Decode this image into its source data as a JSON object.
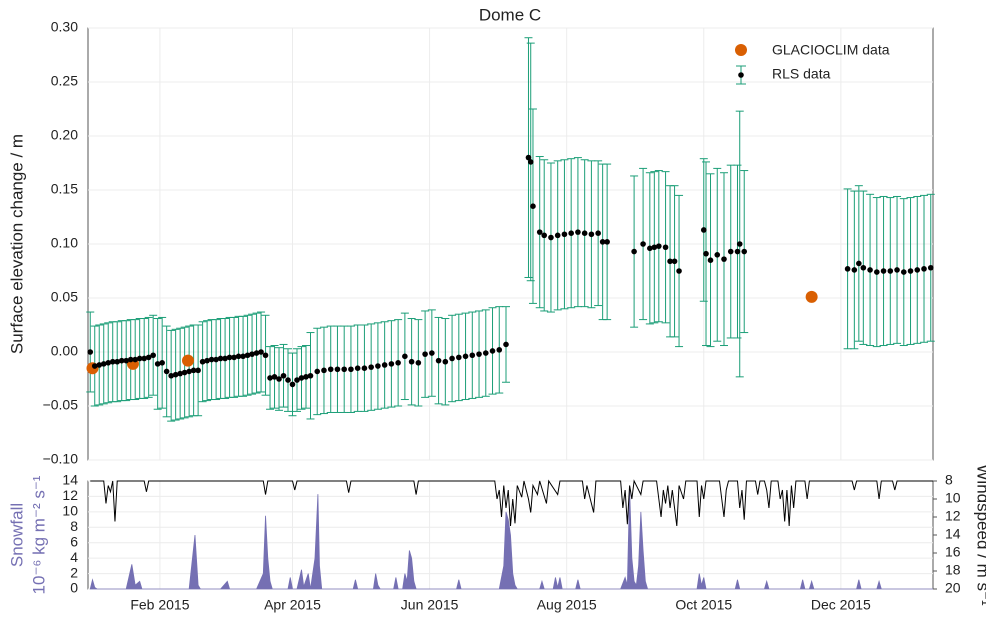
{
  "chart_data": [
    {
      "type": "errorbar",
      "title": "Dome C",
      "y_label": "Surface elevation change / m",
      "ylim": [
        -0.1,
        0.3
      ],
      "yticks": [
        {
          "value": -0.1,
          "label": "−0.10"
        },
        {
          "value": -0.05,
          "label": "−0.05"
        },
        {
          "value": 0,
          "label": "0.00"
        },
        {
          "value": 0.05,
          "label": "0.05"
        },
        {
          "value": 0.1,
          "label": "0.10"
        },
        {
          "value": 0.15,
          "label": "0.15"
        },
        {
          "value": 0.2,
          "label": "0.20"
        },
        {
          "value": 0.25,
          "label": "0.25"
        },
        {
          "value": 0.3,
          "label": "0.30"
        }
      ],
      "grid": true,
      "legend": "upper right",
      "series": [
        {
          "name": "GLACIOCLIM data",
          "color": "#d95f02",
          "x": [
            1,
            19,
            43.5,
            321
          ],
          "values": [
            -0.015,
            -0.011,
            -0.008,
            0.051
          ]
        },
        {
          "name": "RLS data",
          "color": "#000000",
          "error_color": "#1b9e77",
          "x": [
            0,
            2,
            4,
            6,
            8,
            10,
            12,
            14,
            16,
            18,
            20,
            22,
            24,
            26,
            28,
            30,
            32,
            34,
            36,
            38,
            40,
            42,
            44,
            46,
            48,
            50,
            52,
            54,
            56,
            58,
            60,
            62,
            64,
            66,
            68,
            70,
            72,
            74,
            76,
            78,
            80,
            82,
            84,
            86,
            88,
            90,
            92,
            94,
            96,
            98,
            101,
            104,
            107,
            110,
            113,
            116,
            119,
            122,
            125,
            128,
            131,
            134,
            137,
            140,
            143,
            146,
            149,
            152,
            155,
            158,
            161,
            164,
            167,
            170,
            173,
            176,
            179,
            182,
            185,
            195,
            196,
            197,
            200,
            202,
            205,
            208,
            211,
            214,
            217,
            220,
            223,
            226,
            228,
            230,
            242,
            246,
            249,
            251,
            253,
            256,
            258,
            260,
            262,
            273,
            274,
            276,
            279,
            282,
            285,
            288,
            289,
            291,
            337,
            340,
            342,
            344,
            347,
            350,
            353,
            356,
            359,
            362,
            365,
            368,
            371,
            374
          ],
          "values": [
            0.0,
            -0.013,
            -0.012,
            -0.011,
            -0.01,
            -0.009,
            -0.009,
            -0.008,
            -0.008,
            -0.007,
            -0.007,
            -0.006,
            -0.006,
            -0.005,
            -0.003,
            -0.011,
            -0.01,
            -0.018,
            -0.022,
            -0.021,
            -0.02,
            -0.019,
            -0.018,
            -0.017,
            -0.017,
            -0.009,
            -0.008,
            -0.007,
            -0.007,
            -0.006,
            -0.006,
            -0.005,
            -0.005,
            -0.004,
            -0.004,
            -0.003,
            -0.002,
            -0.001,
            0.0,
            -0.003,
            -0.024,
            -0.023,
            -0.025,
            -0.022,
            -0.026,
            -0.03,
            -0.026,
            -0.024,
            -0.023,
            -0.022,
            -0.018,
            -0.017,
            -0.016,
            -0.016,
            -0.016,
            -0.016,
            -0.015,
            -0.015,
            -0.014,
            -0.013,
            -0.012,
            -0.011,
            -0.01,
            -0.004,
            -0.009,
            -0.01,
            -0.002,
            -0.001,
            -0.008,
            -0.009,
            -0.006,
            -0.005,
            -0.004,
            -0.003,
            -0.002,
            -0.001,
            0.001,
            0.002,
            0.007,
            0.18,
            0.176,
            0.135,
            0.111,
            0.108,
            0.106,
            0.108,
            0.109,
            0.11,
            0.111,
            0.11,
            0.109,
            0.11,
            0.102,
            0.102,
            0.093,
            0.1,
            0.096,
            0.097,
            0.098,
            0.097,
            0.084,
            0.084,
            0.075,
            0.113,
            0.091,
            0.085,
            0.09,
            0.086,
            0.093,
            0.093,
            0.1,
            0.093,
            0.077,
            0.076,
            0.082,
            0.078,
            0.076,
            0.074,
            0.075,
            0.075,
            0.076,
            0.074,
            0.075,
            0.076,
            0.077,
            0.078
          ],
          "errors": [
            0.037,
            0.037,
            0.037,
            0.037,
            0.037,
            0.037,
            0.037,
            0.037,
            0.037,
            0.037,
            0.037,
            0.037,
            0.037,
            0.037,
            0.037,
            0.042,
            0.042,
            0.042,
            0.042,
            0.042,
            0.042,
            0.042,
            0.042,
            0.042,
            0.042,
            0.037,
            0.037,
            0.037,
            0.037,
            0.037,
            0.037,
            0.037,
            0.037,
            0.037,
            0.037,
            0.037,
            0.037,
            0.037,
            0.037,
            0.037,
            0.029,
            0.029,
            0.029,
            0.029,
            0.029,
            0.029,
            0.029,
            0.029,
            0.029,
            0.04,
            0.04,
            0.04,
            0.04,
            0.04,
            0.04,
            0.04,
            0.04,
            0.04,
            0.04,
            0.04,
            0.04,
            0.04,
            0.04,
            0.04,
            0.04,
            0.04,
            0.04,
            0.04,
            0.04,
            0.04,
            0.04,
            0.04,
            0.04,
            0.04,
            0.04,
            0.04,
            0.04,
            0.04,
            0.035,
            0.111,
            0.11,
            0.09,
            0.07,
            0.07,
            0.069,
            0.069,
            0.069,
            0.069,
            0.069,
            0.068,
            0.068,
            0.067,
            0.072,
            0.072,
            0.07,
            0.07,
            0.07,
            0.07,
            0.07,
            0.07,
            0.07,
            0.07,
            0.07,
            0.066,
            0.085,
            0.08,
            0.08,
            0.08,
            0.08,
            0.08,
            0.123,
            0.075,
            0.074,
            0.073,
            0.072,
            0.071,
            0.07,
            0.069,
            0.069,
            0.068,
            0.068,
            0.068,
            0.068,
            0.068,
            0.068,
            0.068
          ]
        }
      ]
    },
    {
      "type": "area",
      "y_label": "Snowfall",
      "y_units": "10⁻⁶ kg m⁻² s⁻¹",
      "y2_label": "Windspeed / m s⁻¹",
      "xlim": [
        -1,
        375
      ],
      "xticks": [
        {
          "value": 31,
          "label": "Feb 2015"
        },
        {
          "value": 90,
          "label": "Apr 2015"
        },
        {
          "value": 151,
          "label": "Jun 2015"
        },
        {
          "value": 212,
          "label": "Aug 2015"
        },
        {
          "value": 273,
          "label": "Oct 2015"
        },
        {
          "value": 334,
          "label": "Dec 2015"
        }
      ],
      "ylim": [
        0,
        14
      ],
      "yticks": [
        0,
        2,
        4,
        6,
        8,
        10,
        12,
        14
      ],
      "y2lim": [
        20,
        8
      ],
      "y2ticks": [
        8,
        10,
        12,
        14,
        16,
        18,
        20
      ],
      "series": [
        {
          "name": "Snowfall",
          "color": "#7570b3",
          "x": [
            0,
            1,
            2,
            3,
            16,
            18.5,
            20,
            22,
            23,
            44,
            46.6,
            48,
            49,
            58,
            61,
            62,
            74,
            77,
            78,
            79,
            80,
            81,
            88,
            89,
            90,
            92,
            94,
            95,
            97,
            98,
            100,
            101.3,
            102,
            103,
            117,
            118,
            119,
            126,
            127,
            128,
            129,
            135,
            136,
            137,
            139,
            140,
            141,
            142,
            143,
            144,
            145,
            163,
            164,
            165,
            182,
            184,
            185,
            186,
            187,
            188,
            189,
            190,
            200,
            201,
            202,
            206,
            207,
            208,
            209,
            210,
            216,
            217,
            218,
            236,
            238,
            239,
            240,
            241,
            242,
            243,
            244,
            245,
            246,
            247,
            248,
            270,
            271,
            272,
            273,
            274,
            287,
            288,
            289,
            300,
            301,
            302,
            316,
            317,
            318,
            320,
            321,
            322,
            341,
            342,
            343,
            350,
            351,
            352,
            375
          ],
          "values": [
            0,
            1.2,
            0.2,
            0,
            0,
            3.2,
            0.5,
            1,
            0,
            0,
            7,
            0.5,
            0,
            0,
            1,
            0,
            0,
            2,
            9.5,
            4,
            1,
            0,
            0,
            1.5,
            0,
            0,
            2.5,
            0.3,
            2,
            0,
            4,
            12.3,
            3,
            0,
            0,
            1.2,
            0,
            0,
            2,
            0.5,
            0,
            0,
            1.5,
            0,
            0,
            2,
            1,
            5,
            4,
            1,
            0,
            0,
            1.2,
            0,
            0,
            3,
            10,
            9,
            7,
            2,
            0.5,
            0,
            0,
            1,
            0,
            0,
            1.5,
            0.2,
            1.5,
            0,
            0,
            1.2,
            0,
            0,
            1.5,
            0.5,
            13,
            4,
            1,
            0.5,
            3,
            10,
            5,
            1,
            0,
            0,
            2,
            0.5,
            1.5,
            0,
            0,
            1.2,
            0,
            0,
            1,
            0,
            0,
            1.2,
            0,
            0,
            1,
            0,
            0,
            1.2,
            0,
            0,
            1,
            0,
            0
          ]
        },
        {
          "name": "Windspeed",
          "color": "#000000",
          "axis": "y2",
          "x": [
            0,
            6,
            7,
            8,
            9,
            10,
            11,
            12,
            24,
            25,
            26,
            77,
            78,
            79,
            90,
            91,
            92,
            114,
            115,
            116,
            144,
            145,
            146,
            180,
            181,
            182,
            183,
            184,
            185,
            186,
            187,
            188,
            189,
            190,
            192,
            193,
            195,
            196,
            197,
            199,
            200,
            203,
            204,
            208,
            209,
            219,
            220,
            221,
            224,
            225,
            236,
            237,
            238,
            239,
            240,
            241,
            242,
            245,
            246,
            252,
            253,
            254,
            255,
            256,
            257,
            258,
            259,
            261,
            262,
            264,
            265,
            270,
            271,
            272,
            273,
            274,
            280,
            281,
            282,
            283,
            284,
            288,
            289,
            290,
            291,
            292,
            296,
            297,
            298,
            300,
            301,
            302,
            303,
            306,
            307,
            308,
            309,
            310,
            311,
            312,
            313,
            314,
            318,
            319,
            320,
            339,
            340,
            341,
            350,
            351,
            352,
            357,
            358,
            359,
            375
          ],
          "values": [
            8,
            8,
            10.5,
            8.5,
            9.2,
            8,
            12.5,
            8,
            8,
            9.2,
            8,
            8,
            9.5,
            8,
            8,
            9,
            8,
            8,
            9.3,
            8,
            8,
            9.5,
            8,
            8,
            10,
            9,
            12,
            8.5,
            11,
            9,
            13,
            10,
            12.7,
            8.5,
            9.8,
            8,
            10,
            11.5,
            8.5,
            9.5,
            8,
            10.5,
            8,
            9.5,
            8,
            8,
            10,
            8.5,
            11.5,
            8,
            8,
            11,
            9,
            12.8,
            8.5,
            10,
            8,
            9.5,
            8,
            8,
            10,
            12,
            9,
            10.5,
            8.5,
            11,
            9,
            13,
            8.5,
            10,
            8,
            8,
            12,
            8.5,
            10,
            8,
            8,
            10,
            12,
            9,
            8,
            8,
            11,
            9,
            12.3,
            8,
            8,
            9.5,
            8,
            8,
            9,
            11,
            8,
            8,
            10,
            9,
            12.5,
            9,
            13,
            8.5,
            11,
            8,
            8,
            10,
            8,
            8,
            9,
            8,
            8,
            10,
            8,
            8,
            9,
            8,
            8
          ]
        }
      ]
    }
  ]
}
